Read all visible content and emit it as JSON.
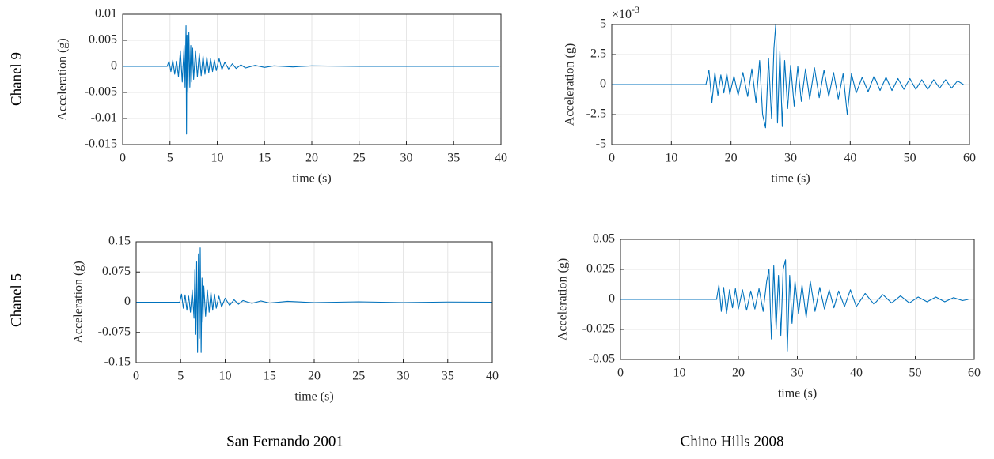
{
  "row_labels": [
    "Chanel 9",
    "Chanel 5"
  ],
  "column_labels": [
    "San Fernando 2001",
    "Chino Hills 2008"
  ],
  "chart_data": [
    {
      "type": "line",
      "xlabel": "time (s)",
      "ylabel": "Acceleration (g)",
      "color": "#0072bd",
      "grid": true,
      "xlim": [
        0,
        40
      ],
      "xticks": [
        0,
        5,
        10,
        15,
        20,
        25,
        30,
        35,
        40
      ],
      "ylim": [
        -0.015,
        0.01
      ],
      "yticks": [
        -0.015,
        -0.01,
        -0.005,
        0,
        0.005,
        0.01
      ],
      "x": [
        0,
        4.7,
        4.9,
        5.1,
        5.3,
        5.5,
        5.7,
        5.9,
        6.1,
        6.3,
        6.5,
        6.6,
        6.7,
        6.75,
        6.8,
        6.9,
        7.0,
        7.1,
        7.2,
        7.3,
        7.4,
        7.5,
        7.7,
        7.9,
        8.1,
        8.3,
        8.5,
        8.7,
        8.9,
        9.1,
        9.3,
        9.5,
        9.7,
        9.9,
        10.2,
        10.5,
        10.8,
        11.2,
        11.6,
        12,
        12.5,
        13,
        14,
        15,
        16,
        18,
        20,
        25,
        30,
        35,
        39.8
      ],
      "values": [
        0,
        0,
        0.001,
        -0.001,
        0.0012,
        -0.0015,
        0.001,
        -0.002,
        0.003,
        -0.003,
        0.004,
        -0.004,
        0.0078,
        -0.013,
        0.006,
        -0.005,
        0.0065,
        -0.004,
        0.004,
        -0.003,
        0.0035,
        -0.0025,
        0.003,
        -0.002,
        0.0025,
        -0.0018,
        0.002,
        -0.0015,
        0.0018,
        -0.0012,
        0.0015,
        -0.001,
        0.0012,
        -0.0008,
        0.0015,
        -0.0006,
        0.0008,
        -0.0005,
        0.0005,
        -0.0004,
        0.0003,
        -0.0003,
        0.0002,
        -0.0002,
        0.0001,
        -0.0001,
        0.0001,
        0,
        0,
        0,
        0
      ]
    },
    {
      "type": "line",
      "xlabel": "time (s)",
      "ylabel": "Acceleration (g)",
      "color": "#0072bd",
      "grid": true,
      "y_exponent": {
        "base": "×10",
        "power": "-3"
      },
      "xlim": [
        0,
        60
      ],
      "xticks": [
        0,
        10,
        20,
        30,
        40,
        50,
        60
      ],
      "ylim": [
        -5,
        5
      ],
      "yticks": [
        -5,
        -2.5,
        0,
        2.5,
        5
      ],
      "x": [
        0,
        15.8,
        16.3,
        16.8,
        17.3,
        17.8,
        18.3,
        18.8,
        19.3,
        19.8,
        20.5,
        21.2,
        22,
        22.8,
        23.5,
        24.2,
        24.8,
        25.3,
        25.8,
        26.3,
        26.8,
        27.2,
        27.5,
        27.8,
        28.2,
        28.6,
        29,
        29.5,
        30,
        30.6,
        31.2,
        31.8,
        32.5,
        33.2,
        34,
        34.8,
        35.6,
        36.4,
        37.2,
        38,
        38.8,
        39.5,
        40.2,
        41,
        42,
        43,
        44,
        45,
        46,
        47,
        48,
        49,
        50,
        51,
        52,
        53,
        54,
        55,
        56,
        57,
        58,
        59
      ],
      "values": [
        0,
        0,
        1.2,
        -1.5,
        1.0,
        -0.9,
        0.8,
        -0.7,
        0.9,
        -0.8,
        0.7,
        -0.9,
        1.0,
        -1.0,
        1.3,
        -1.5,
        2.0,
        -2.5,
        -3.6,
        2.2,
        -2.8,
        3.0,
        5.0,
        -3.2,
        2.8,
        -3.5,
        2.0,
        -2.0,
        1.6,
        -1.8,
        1.5,
        -1.4,
        1.3,
        -1.2,
        1.4,
        -1.1,
        1.2,
        -1.0,
        1.0,
        -1.2,
        0.9,
        -2.5,
        0.9,
        -0.7,
        0.6,
        -0.6,
        0.7,
        -0.5,
        0.6,
        -0.5,
        0.5,
        -0.4,
        0.5,
        -0.4,
        0.4,
        -0.4,
        0.4,
        -0.3,
        0.4,
        -0.3,
        0.3,
        0
      ]
    },
    {
      "type": "line",
      "xlabel": "time (s)",
      "ylabel": "Acceleration (g)",
      "color": "#0072bd",
      "grid": true,
      "xlim": [
        0,
        40
      ],
      "xticks": [
        0,
        5,
        10,
        15,
        20,
        25,
        30,
        35,
        40
      ],
      "ylim": [
        -0.15,
        0.15
      ],
      "yticks": [
        -0.15,
        -0.075,
        0,
        0.075,
        0.15
      ],
      "x": [
        0,
        4.9,
        5.1,
        5.3,
        5.5,
        5.7,
        5.9,
        6.1,
        6.3,
        6.5,
        6.6,
        6.7,
        6.8,
        6.9,
        7.0,
        7.1,
        7.2,
        7.3,
        7.4,
        7.5,
        7.6,
        7.8,
        8.0,
        8.2,
        8.4,
        8.6,
        8.8,
        9.0,
        9.3,
        9.6,
        10,
        10.5,
        11,
        11.5,
        12,
        13,
        14,
        15,
        17,
        20,
        25,
        30,
        35,
        40
      ],
      "values": [
        0,
        0,
        0.02,
        -0.015,
        0.018,
        -0.02,
        0.015,
        -0.025,
        0.03,
        -0.04,
        0.08,
        -0.08,
        0.1,
        -0.125,
        0.12,
        -0.09,
        0.135,
        -0.125,
        0.06,
        -0.05,
        0.04,
        -0.035,
        0.03,
        -0.025,
        0.025,
        -0.02,
        0.02,
        -0.015,
        0.015,
        -0.012,
        0.01,
        -0.008,
        0.006,
        -0.005,
        0.004,
        -0.003,
        0.003,
        -0.002,
        0.002,
        -0.001,
        0.001,
        -0.001,
        0.0005,
        0
      ]
    },
    {
      "type": "line",
      "xlabel": "time (s)",
      "ylabel": "Acceleration (g)",
      "color": "#0072bd",
      "grid": true,
      "xlim": [
        0,
        60
      ],
      "xticks": [
        0,
        10,
        20,
        30,
        40,
        50,
        60
      ],
      "ylim": [
        -0.05,
        0.05
      ],
      "yticks": [
        -0.05,
        -0.025,
        0,
        0.025,
        0.05
      ],
      "x": [
        0,
        16.3,
        16.7,
        17.1,
        17.5,
        18,
        18.5,
        19,
        19.5,
        20,
        20.7,
        21.4,
        22.1,
        22.8,
        23.5,
        24.2,
        24.8,
        25.2,
        25.6,
        26,
        26.4,
        26.8,
        27.2,
        27.6,
        28,
        28.3,
        28.7,
        29.1,
        29.6,
        30.2,
        30.8,
        31.5,
        32.2,
        33,
        33.8,
        34.6,
        35.4,
        36.2,
        37,
        38,
        39,
        40,
        41.5,
        43,
        44.5,
        46,
        47.5,
        49,
        50.5,
        52,
        53.5,
        55,
        56.5,
        58,
        59
      ],
      "values": [
        0,
        0,
        0.012,
        -0.01,
        0.01,
        -0.012,
        0.008,
        -0.007,
        0.009,
        -0.008,
        0.008,
        -0.009,
        0.007,
        -0.008,
        0.009,
        -0.01,
        0.015,
        0.025,
        -0.033,
        0.028,
        -0.025,
        0.02,
        -0.03,
        0.025,
        0.033,
        -0.043,
        0.02,
        -0.02,
        0.015,
        -0.012,
        0.012,
        -0.015,
        0.015,
        -0.01,
        0.01,
        -0.008,
        0.008,
        -0.007,
        0.007,
        -0.006,
        0.008,
        -0.006,
        0.005,
        -0.004,
        0.004,
        -0.003,
        0.003,
        -0.003,
        0.002,
        -0.002,
        0.002,
        -0.002,
        0.0015,
        -0.001,
        0
      ]
    }
  ]
}
